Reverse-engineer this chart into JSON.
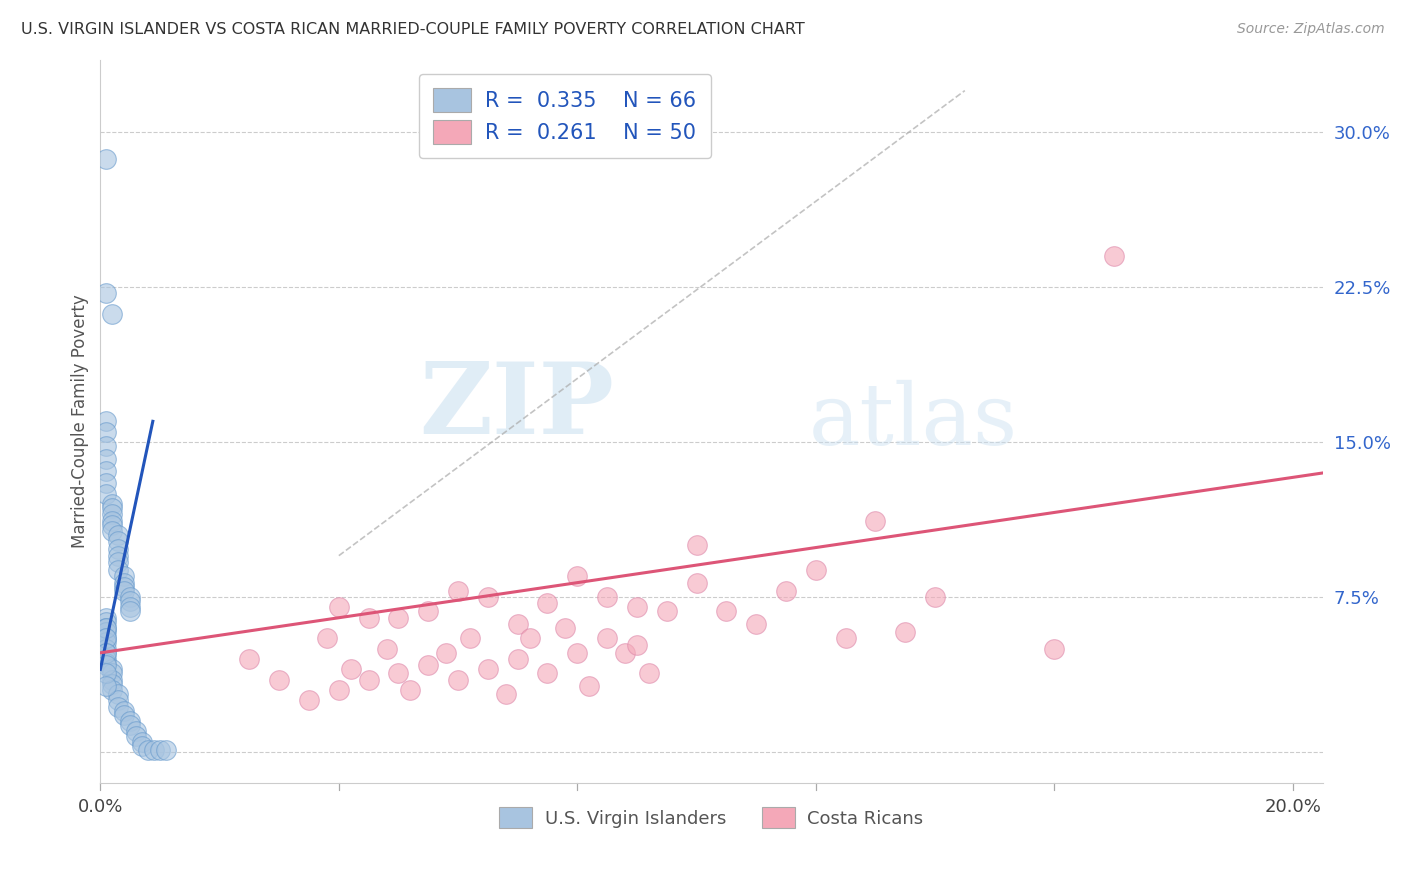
{
  "title": "U.S. VIRGIN ISLANDER VS COSTA RICAN MARRIED-COUPLE FAMILY POVERTY CORRELATION CHART",
  "source": "Source: ZipAtlas.com",
  "ylabel": "Married-Couple Family Poverty",
  "xlabel": "",
  "xmin": 0.0,
  "xmax": 0.205,
  "ymin": -0.015,
  "ymax": 0.335,
  "yticks": [
    0.0,
    0.075,
    0.15,
    0.225,
    0.3
  ],
  "ytick_labels": [
    "",
    "7.5%",
    "15.0%",
    "22.5%",
    "30.0%"
  ],
  "xticks": [
    0.0,
    0.04,
    0.08,
    0.12,
    0.16,
    0.2
  ],
  "xtick_labels": [
    "0.0%",
    "",
    "",
    "",
    "",
    "20.0%"
  ],
  "watermark_zip": "ZIP",
  "watermark_atlas": "atlas",
  "blue_R": 0.335,
  "blue_N": 66,
  "pink_R": 0.261,
  "pink_N": 50,
  "blue_color": "#a8c4e0",
  "pink_color": "#f4a8b8",
  "blue_line_color": "#2255bb",
  "pink_line_color": "#dd5577",
  "background_color": "#ffffff",
  "grid_color": "#cccccc",
  "blue_scatter_x": [
    0.001,
    0.001,
    0.002,
    0.001,
    0.001,
    0.001,
    0.001,
    0.001,
    0.001,
    0.001,
    0.002,
    0.002,
    0.002,
    0.002,
    0.002,
    0.002,
    0.003,
    0.003,
    0.003,
    0.003,
    0.003,
    0.003,
    0.004,
    0.004,
    0.004,
    0.004,
    0.005,
    0.005,
    0.005,
    0.005,
    0.001,
    0.001,
    0.001,
    0.001,
    0.001,
    0.001,
    0.001,
    0.001,
    0.001,
    0.001,
    0.002,
    0.002,
    0.002,
    0.002,
    0.002,
    0.003,
    0.003,
    0.003,
    0.004,
    0.004,
    0.005,
    0.005,
    0.006,
    0.006,
    0.007,
    0.007,
    0.008,
    0.009,
    0.01,
    0.011,
    0.001,
    0.001,
    0.001,
    0.001,
    0.001,
    0.001
  ],
  "blue_scatter_y": [
    0.287,
    0.222,
    0.212,
    0.16,
    0.155,
    0.148,
    0.142,
    0.136,
    0.13,
    0.125,
    0.12,
    0.118,
    0.115,
    0.112,
    0.11,
    0.107,
    0.105,
    0.102,
    0.098,
    0.095,
    0.092,
    0.088,
    0.085,
    0.082,
    0.08,
    0.078,
    0.075,
    0.073,
    0.07,
    0.068,
    0.065,
    0.063,
    0.06,
    0.058,
    0.055,
    0.053,
    0.05,
    0.048,
    0.045,
    0.043,
    0.04,
    0.038,
    0.035,
    0.033,
    0.03,
    0.028,
    0.025,
    0.022,
    0.02,
    0.018,
    0.015,
    0.013,
    0.01,
    0.008,
    0.005,
    0.003,
    0.001,
    0.001,
    0.001,
    0.001,
    0.06,
    0.055,
    0.048,
    0.042,
    0.038,
    0.032
  ],
  "pink_scatter_x": [
    0.025,
    0.03,
    0.035,
    0.038,
    0.04,
    0.04,
    0.042,
    0.045,
    0.045,
    0.048,
    0.05,
    0.05,
    0.052,
    0.055,
    0.055,
    0.058,
    0.06,
    0.06,
    0.062,
    0.065,
    0.065,
    0.068,
    0.07,
    0.07,
    0.072,
    0.075,
    0.075,
    0.078,
    0.08,
    0.08,
    0.082,
    0.085,
    0.085,
    0.088,
    0.09,
    0.09,
    0.092,
    0.095,
    0.1,
    0.1,
    0.105,
    0.11,
    0.115,
    0.12,
    0.125,
    0.13,
    0.135,
    0.14,
    0.16,
    0.17
  ],
  "pink_scatter_y": [
    0.045,
    0.035,
    0.025,
    0.055,
    0.03,
    0.07,
    0.04,
    0.035,
    0.065,
    0.05,
    0.038,
    0.065,
    0.03,
    0.042,
    0.068,
    0.048,
    0.035,
    0.078,
    0.055,
    0.04,
    0.075,
    0.028,
    0.062,
    0.045,
    0.055,
    0.038,
    0.072,
    0.06,
    0.048,
    0.085,
    0.032,
    0.075,
    0.055,
    0.048,
    0.07,
    0.052,
    0.038,
    0.068,
    0.082,
    0.1,
    0.068,
    0.062,
    0.078,
    0.088,
    0.055,
    0.112,
    0.058,
    0.075,
    0.05,
    0.24
  ],
  "blue_line_x": [
    0.0,
    0.0088
  ],
  "blue_line_y": [
    0.04,
    0.16
  ],
  "pink_line_x": [
    0.0,
    0.205
  ],
  "pink_line_y": [
    0.048,
    0.135
  ],
  "dash_line_x": [
    0.04,
    0.145
  ],
  "dash_line_y": [
    0.095,
    0.32
  ]
}
